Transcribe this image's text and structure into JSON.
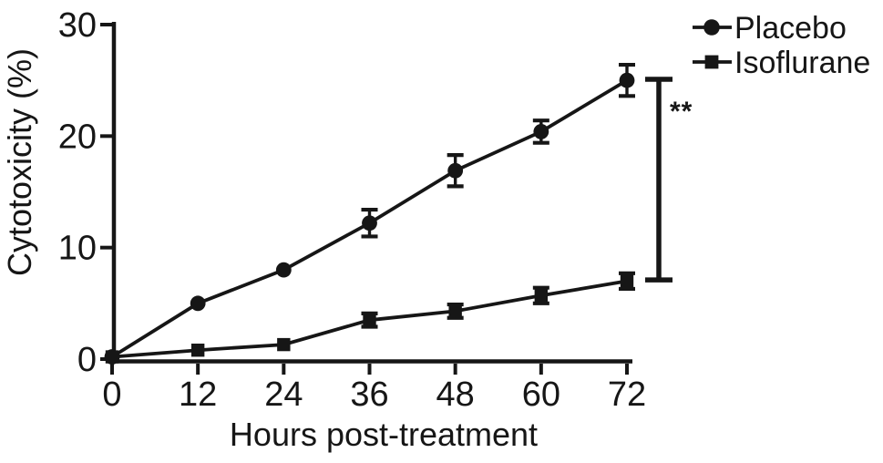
{
  "figure": {
    "background": "#ffffff",
    "ink": "#161616"
  },
  "chart_data": {
    "type": "line",
    "title": "",
    "xlabel": "Hours post-treatment",
    "ylabel": "Cytotoxicity (%)",
    "x": [
      0,
      12,
      24,
      36,
      48,
      60,
      72
    ],
    "xticks": [
      "0",
      "12",
      "24",
      "36",
      "48",
      "60",
      "72"
    ],
    "yticks": [
      "0",
      "10",
      "20",
      "30"
    ],
    "xlim": [
      0,
      72
    ],
    "ylim": [
      0,
      30
    ],
    "grid": false,
    "legend": {
      "position": "top-right"
    },
    "series": [
      {
        "name": "Placebo",
        "marker": "circle",
        "color": "#161616",
        "values": [
          0.2,
          5.0,
          8.0,
          12.2,
          16.9,
          20.4,
          25.0
        ],
        "errors": [
          0,
          0,
          0,
          1.2,
          1.4,
          1.0,
          1.4
        ]
      },
      {
        "name": "Isoflurane",
        "marker": "square",
        "color": "#161616",
        "values": [
          0.2,
          0.8,
          1.3,
          3.5,
          4.3,
          5.7,
          7.0
        ],
        "errors": [
          0,
          0,
          0,
          0.6,
          0.6,
          0.7,
          0.7
        ]
      }
    ],
    "annotations": [
      {
        "type": "significance-bracket",
        "label": "**",
        "compares": [
          "Placebo",
          "Isoflurane"
        ],
        "x": 72,
        "y_top": 25.1,
        "y_bottom": 7.1
      }
    ]
  }
}
